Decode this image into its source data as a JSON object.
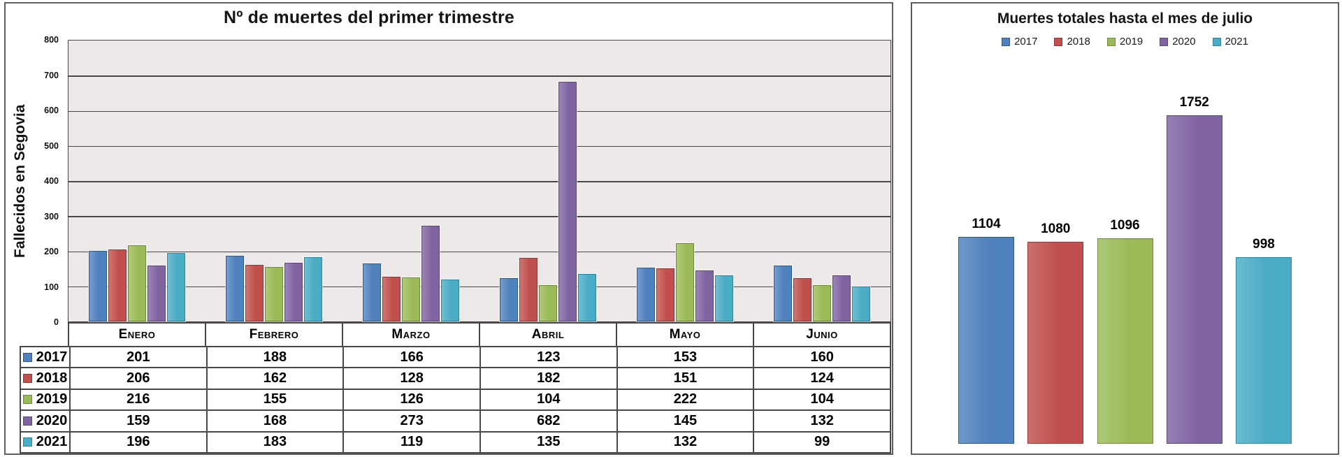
{
  "chart_data": [
    {
      "type": "bar",
      "title": "Nº de muertes del primer trimestre",
      "ylabel": "Fallecidos en Segovia",
      "xlabel": "",
      "categories": [
        "Enero",
        "Febrero",
        "Marzo",
        "Abril",
        "Mayo",
        "Junio"
      ],
      "series": [
        {
          "name": "2017",
          "color": "#4F81BD",
          "border_color": "#2E5984",
          "values": [
            201,
            188,
            166,
            123,
            153,
            160
          ]
        },
        {
          "name": "2018",
          "color": "#C0504D",
          "border_color": "#8B3A37",
          "values": [
            206,
            162,
            128,
            182,
            151,
            124
          ]
        },
        {
          "name": "2019",
          "color": "#9BBB59",
          "border_color": "#70893C",
          "values": [
            216,
            155,
            126,
            104,
            222,
            104
          ]
        },
        {
          "name": "2020",
          "color": "#8064A2",
          "border_color": "#5B4875",
          "values": [
            159,
            168,
            273,
            682,
            145,
            132
          ]
        },
        {
          "name": "2021",
          "color": "#4BACC6",
          "border_color": "#31859B",
          "values": [
            196,
            183,
            119,
            135,
            132,
            99
          ]
        }
      ],
      "ylim": [
        0,
        800
      ],
      "ytick_step": 100,
      "grid": true,
      "plot_background": "#ECE9E8",
      "legend_position": "table-left-column",
      "has_data_table": true
    },
    {
      "type": "bar",
      "title": "Muertes totales hasta el mes de julio",
      "categories": [
        "2017",
        "2018",
        "2019",
        "2020",
        "2021"
      ],
      "values": [
        1104,
        1080,
        1096,
        1752,
        998
      ],
      "bar_colors": [
        "#4F81BD",
        "#C0504D",
        "#9BBB59",
        "#8064A2",
        "#4BACC6"
      ],
      "bar_border_colors": [
        "#2E5984",
        "#8B3A37",
        "#70893C",
        "#5B4875",
        "#31859B"
      ],
      "legend": [
        "2017",
        "2018",
        "2019",
        "2020",
        "2021"
      ],
      "legend_position": "top",
      "data_labels": true,
      "ylim": [
        0,
        2000
      ],
      "axes_visible": false,
      "grid": false
    }
  ],
  "styles": {
    "panel_border_color": "#615D5C",
    "gridline_color": "#4A4846",
    "table_border_color": "#4A4846",
    "title_color": "#151515"
  }
}
